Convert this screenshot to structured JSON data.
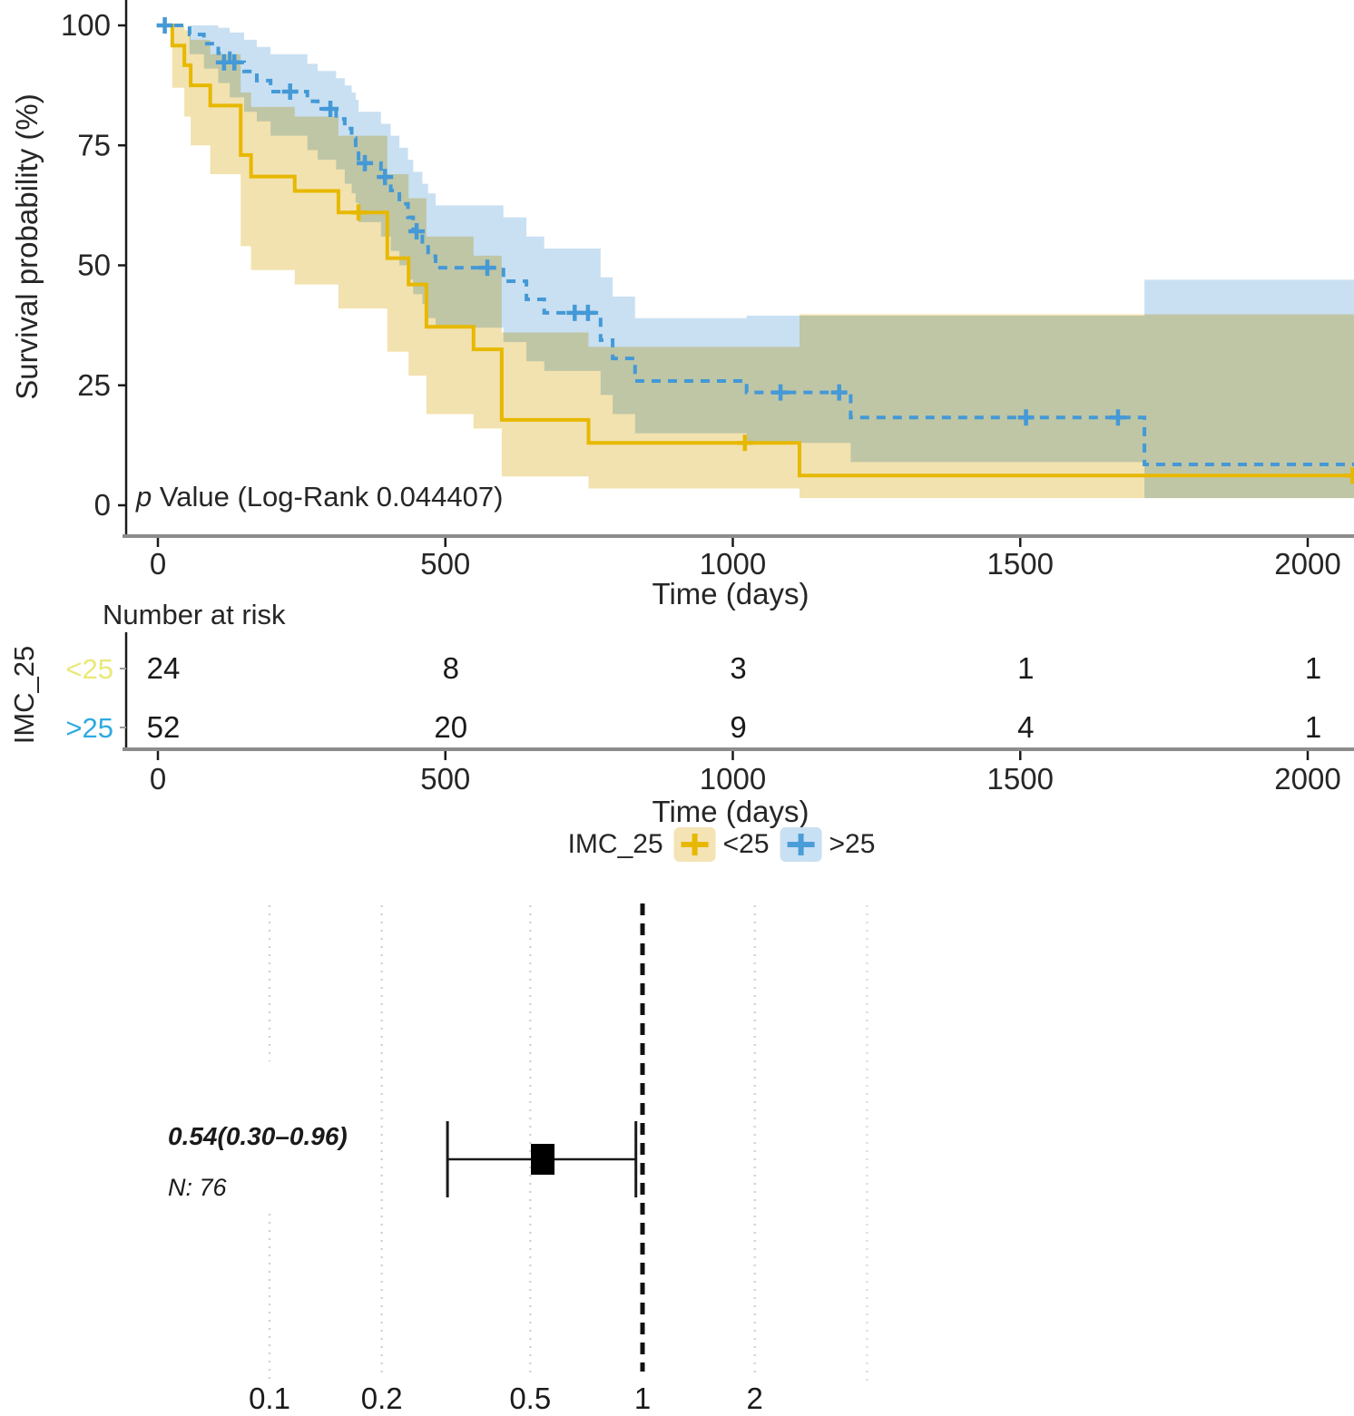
{
  "km": {
    "ylabel": "Survival probability (%)",
    "xlabel": "Time (days)",
    "annotation": {
      "italic_part": "p",
      "text_part": " Value (Log-Rank 0.044407)"
    }
  },
  "risk_table": {
    "title": "Number at risk",
    "group_axis_label": "IMC_25",
    "xlabel": "Time (days)"
  },
  "legend": {
    "title": "IMC_25",
    "items": [
      {
        "label": "<25",
        "plus_color": "#E7B800",
        "box_color": "#F4E3B4"
      },
      {
        "label": ">25",
        "plus_color": "#4A9DD8",
        "box_color": "#C8E0F3"
      }
    ]
  },
  "forest": {
    "estimate_label": "0.54(0.30–0.96)",
    "n_label": "N: 76"
  },
  "chart_data": [
    {
      "type": "line",
      "subtype": "kaplan-meier-survival",
      "title": "",
      "xlabel": "Time (days)",
      "ylabel": "Survival probability (%)",
      "xlim": [
        0,
        2080
      ],
      "ylim": [
        0,
        100
      ],
      "x_ticks": [
        0,
        500,
        1000,
        1500,
        2000
      ],
      "y_ticks": [
        0,
        25,
        50,
        75,
        100
      ],
      "grid": false,
      "annotation": "p Value (Log-Rank 0.044407)",
      "legend_position": "bottom",
      "series": [
        {
          "name": "<25",
          "color": "#E7B800",
          "band_color": "#F2E2AF",
          "dash": "solid",
          "end": 2085,
          "steps": [
            [
              0,
              100
            ],
            [
              25,
              95.8
            ],
            [
              46,
              91.7
            ],
            [
              57,
              87.5
            ],
            [
              91,
              83.3
            ],
            [
              144,
              73
            ],
            [
              162,
              68.5
            ],
            [
              238,
              65.5
            ],
            [
              314,
              61
            ],
            [
              399,
              51.5
            ],
            [
              436,
              46
            ],
            [
              467,
              37.2
            ],
            [
              549,
              32.5
            ],
            [
              598,
              17.8
            ],
            [
              749,
              13
            ],
            [
              1116,
              6.2
            ]
          ],
          "censors": [
            [
              349,
              61
            ],
            [
              1021,
              13
            ],
            [
              2078,
              6.2
            ]
          ],
          "band": [
            [
              0,
              100,
              100
            ],
            [
              25,
              87,
              100
            ],
            [
              46,
              81,
              99
            ],
            [
              57,
              75,
              97
            ],
            [
              91,
              69,
              94
            ],
            [
              144,
              54,
              86
            ],
            [
              162,
              49,
              83
            ],
            [
              238,
              46,
              81
            ],
            [
              314,
              41,
              77
            ],
            [
              399,
              32,
              69
            ],
            [
              436,
              27,
              64
            ],
            [
              467,
              19,
              56
            ],
            [
              549,
              16,
              52
            ],
            [
              598,
              6,
              36
            ],
            [
              749,
              3.5,
              33
            ],
            [
              1116,
              1.5,
              39.8
            ]
          ]
        },
        {
          "name": ">25",
          "color": "#4499D6",
          "band_color": "#C9E0F2",
          "dash": "dashed",
          "end": 2090,
          "steps": [
            [
              0,
              100
            ],
            [
              55,
              98.1
            ],
            [
              80,
              96.2
            ],
            [
              105,
              94.2
            ],
            [
              125,
              92.3
            ],
            [
              150,
              90.4
            ],
            [
              172,
              88.5
            ],
            [
              196,
              86.2
            ],
            [
              260,
              84.2
            ],
            [
              278,
              82.6
            ],
            [
              310,
              80.5
            ],
            [
              325,
              78.5
            ],
            [
              337,
              76.5
            ],
            [
              344,
              74.4
            ],
            [
              349,
              71.3
            ],
            [
              388,
              68.4
            ],
            [
              405,
              65.6
            ],
            [
              420,
              62.8
            ],
            [
              435,
              60
            ],
            [
              444,
              57.1
            ],
            [
              460,
              54.3
            ],
            [
              470,
              51.9
            ],
            [
              483,
              49.5
            ],
            [
              601,
              46.7
            ],
            [
              641,
              42.9
            ],
            [
              672,
              40.1
            ],
            [
              770,
              34.4
            ],
            [
              791,
              30.6
            ],
            [
              830,
              25.9
            ],
            [
              1024,
              23.5
            ],
            [
              1205,
              18.3
            ],
            [
              1716,
              8.5
            ]
          ],
          "censors": [
            [
              12,
              100
            ],
            [
              115,
              92.3
            ],
            [
              133,
              92.3
            ],
            [
              230,
              86.2
            ],
            [
              300,
              82.6
            ],
            [
              360,
              71.3
            ],
            [
              395,
              68.4
            ],
            [
              450,
              57.1
            ],
            [
              573,
              49.5
            ],
            [
              725,
              40.1
            ],
            [
              748,
              40.1
            ],
            [
              1083,
              23.5
            ],
            [
              1185,
              23.5
            ],
            [
              1510,
              18.3
            ],
            [
              1670,
              18.3
            ]
          ],
          "band": [
            [
              0,
              100,
              100
            ],
            [
              55,
              94,
              100
            ],
            [
              80,
              91,
              100
            ],
            [
              105,
              88,
              99.5
            ],
            [
              125,
              85,
              98.5
            ],
            [
              150,
              82,
              97
            ],
            [
              172,
              80,
              95.5
            ],
            [
              196,
              77,
              94
            ],
            [
              260,
              74,
              92
            ],
            [
              278,
              72,
              90.5
            ],
            [
              310,
              70,
              89
            ],
            [
              325,
              67,
              87.5
            ],
            [
              337,
              65,
              86
            ],
            [
              344,
              63,
              84.5
            ],
            [
              349,
              59,
              82
            ],
            [
              388,
              56,
              79.5
            ],
            [
              405,
              53,
              77
            ],
            [
              420,
              50,
              74.5
            ],
            [
              435,
              47,
              72
            ],
            [
              444,
              44,
              69.5
            ],
            [
              460,
              42,
              67
            ],
            [
              470,
              39,
              65
            ],
            [
              483,
              37,
              62.5
            ],
            [
              601,
              34,
              60
            ],
            [
              641,
              30,
              56
            ],
            [
              672,
              28,
              53.5
            ],
            [
              770,
              23,
              47.5
            ],
            [
              791,
              19,
              43.5
            ],
            [
              830,
              15,
              39
            ],
            [
              1024,
              13,
              39.5
            ],
            [
              1205,
              9,
              39.5
            ],
            [
              1716,
              1.5,
              47
            ]
          ]
        }
      ]
    },
    {
      "type": "table",
      "subtype": "number-at-risk",
      "title": "Number at risk",
      "group_axis_label": "IMC_25",
      "xlabel": "Time (days)",
      "x_ticks": [
        0,
        500,
        1000,
        1500,
        2000
      ],
      "rows": [
        {
          "label": "<25",
          "label_color": "#EAE878",
          "values": [
            24,
            8,
            3,
            1,
            1
          ]
        },
        {
          "label": ">25",
          "label_color": "#2EAAE1",
          "values": [
            52,
            20,
            9,
            4,
            1
          ]
        }
      ]
    },
    {
      "type": "scatter",
      "subtype": "forest-plot",
      "scale": "log",
      "x_ticks": [
        0.1,
        0.2,
        0.5,
        1,
        2
      ],
      "unlabeled_gridlines": [
        4
      ],
      "reference_line": 1,
      "rows": [
        {
          "label": "0.54(0.30–0.96)",
          "n_label": "N: 76",
          "n": 76,
          "estimate": 0.54,
          "ci_low": 0.3,
          "ci_high": 0.96
        }
      ]
    }
  ]
}
